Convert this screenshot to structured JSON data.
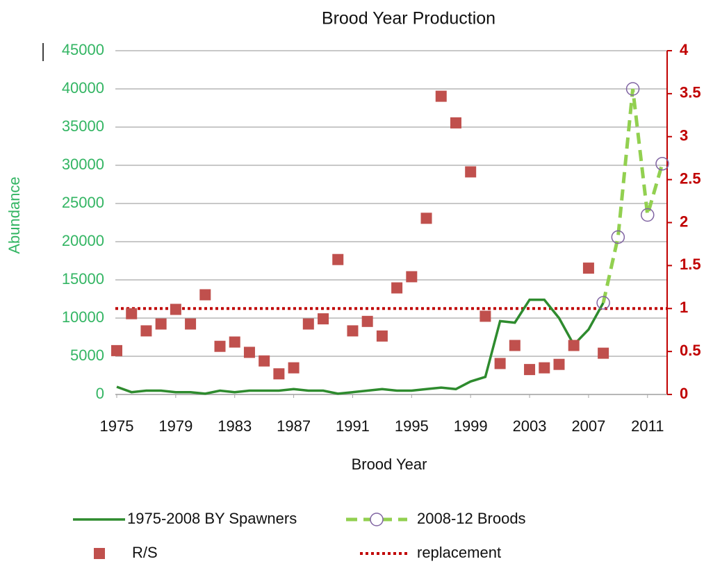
{
  "chart_data": {
    "type": "line",
    "title": "Brood Year Production",
    "x_label": "Brood Year",
    "y_label": "Abundance",
    "x": [
      1975,
      1976,
      1977,
      1978,
      1979,
      1980,
      1981,
      1982,
      1983,
      1984,
      1985,
      1986,
      1987,
      1988,
      1989,
      1990,
      1991,
      1992,
      1993,
      1994,
      1995,
      1996,
      1997,
      1998,
      1999,
      2000,
      2001,
      2002,
      2003,
      2004,
      2005,
      2006,
      2007,
      2008,
      2009,
      2010,
      2011,
      2012
    ],
    "xlim": [
      1975,
      2012
    ],
    "xticks": [
      1975,
      1979,
      1983,
      1987,
      1991,
      1995,
      1999,
      2003,
      2007,
      2011
    ],
    "ylim": [
      0,
      45000
    ],
    "yticks": [
      0,
      5000,
      10000,
      15000,
      20000,
      25000,
      30000,
      35000,
      40000,
      45000
    ],
    "y2lim": [
      0,
      4
    ],
    "y2ticks": [
      0,
      0.5,
      1,
      1.5,
      2,
      2.5,
      3,
      3.5,
      4
    ],
    "grid": true,
    "legend": "bottom",
    "series": [
      {
        "name": "1975-2008 BY Spawners",
        "type": "line",
        "color": "#2e8b2e",
        "values": [
          1000,
          300,
          500,
          500,
          300,
          300,
          100,
          500,
          300,
          500,
          500,
          500,
          700,
          500,
          500,
          100,
          300,
          500,
          700,
          500,
          500,
          700,
          900,
          700,
          1700,
          2300,
          9600,
          9400,
          12400,
          12400,
          10000,
          6500,
          8500,
          12000,
          null,
          null,
          null,
          null
        ]
      },
      {
        "name": "2008-12 Broods",
        "type": "line",
        "dashed": true,
        "marker": "circle",
        "color": "#92d050",
        "marker_color": "#8064a2",
        "values": [
          null,
          null,
          null,
          null,
          null,
          null,
          null,
          null,
          null,
          null,
          null,
          null,
          null,
          null,
          null,
          null,
          null,
          null,
          null,
          null,
          null,
          null,
          null,
          null,
          null,
          null,
          null,
          null,
          null,
          null,
          null,
          null,
          null,
          12000,
          20600,
          40000,
          23500,
          30200
        ]
      },
      {
        "name": "R/S",
        "type": "scatter",
        "axis": "y2",
        "color": "#c0504d",
        "values": [
          0.51,
          0.94,
          0.74,
          0.82,
          0.99,
          0.82,
          1.16,
          0.56,
          0.61,
          0.49,
          0.39,
          0.24,
          0.31,
          0.82,
          0.88,
          1.57,
          0.74,
          0.85,
          0.68,
          1.24,
          1.37,
          2.05,
          3.47,
          3.16,
          2.59,
          0.91,
          0.36,
          0.57,
          0.29,
          0.31,
          0.35,
          0.57,
          1.47,
          0.48,
          null,
          null,
          null,
          null
        ]
      },
      {
        "name": "replacement",
        "type": "hline",
        "axis": "y2",
        "color": "#c00000",
        "value": 1
      }
    ]
  }
}
